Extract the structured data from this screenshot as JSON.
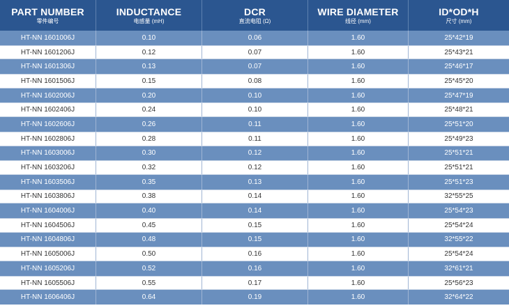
{
  "headers": [
    {
      "main": "PART NUMBER",
      "sub": "零件编号"
    },
    {
      "main": "INDUCTANCE",
      "sub": "电感量 (mH)"
    },
    {
      "main": "DCR",
      "sub": "直流电阻 (Ω)"
    },
    {
      "main": "WIRE DIAMETER",
      "sub": "线径 (mm)"
    },
    {
      "main": "ID*OD*H",
      "sub": "尺寸 (mm)"
    }
  ],
  "rows": [
    [
      "HT-NN 1601006J",
      "0.10",
      "0.06",
      "1.60",
      "25*42*19"
    ],
    [
      "HT-NN 1601206J",
      "0.12",
      "0.07",
      "1.60",
      "25*43*21"
    ],
    [
      "HT-NN 1601306J",
      "0.13",
      "0.07",
      "1.60",
      "25*46*17"
    ],
    [
      "HT-NN 1601506J",
      "0.15",
      "0.08",
      "1.60",
      "25*45*20"
    ],
    [
      "HT-NN 1602006J",
      "0.20",
      "0.10",
      "1.60",
      "25*47*19"
    ],
    [
      "HT-NN 1602406J",
      "0.24",
      "0.10",
      "1.60",
      "25*48*21"
    ],
    [
      "HT-NN 1602606J",
      "0.26",
      "0.11",
      "1.60",
      "25*51*20"
    ],
    [
      "HT-NN 1602806J",
      "0.28",
      "0.11",
      "1.60",
      "25*49*23"
    ],
    [
      "HT-NN 1603006J",
      "0.30",
      "0.12",
      "1.60",
      "25*51*21"
    ],
    [
      "HT-NN 1603206J",
      "0.32",
      "0.12",
      "1.60",
      "25*51*21"
    ],
    [
      "HT-NN 1603506J",
      "0.35",
      "0.13",
      "1.60",
      "25*51*23"
    ],
    [
      "HT-NN 1603806J",
      "0.38",
      "0.14",
      "1.60",
      "32*55*25"
    ],
    [
      "HT-NN 1604006J",
      "0.40",
      "0.14",
      "1.60",
      "25*54*23"
    ],
    [
      "HT-NN 1604506J",
      "0.45",
      "0.15",
      "1.60",
      "25*54*24"
    ],
    [
      "HT-NN 1604806J",
      "0.48",
      "0.15",
      "1.60",
      "32*55*22"
    ],
    [
      "HT-NN 1605006J",
      "0.50",
      "0.16",
      "1.60",
      "25*54*24"
    ],
    [
      "HT-NN 1605206J",
      "0.52",
      "0.16",
      "1.60",
      "32*61*21"
    ],
    [
      "HT-NN 1605506J",
      "0.55",
      "0.17",
      "1.60",
      "25*56*23"
    ],
    [
      "HT-NN 1606406J",
      "0.64",
      "0.19",
      "1.60",
      "32*64*22"
    ]
  ],
  "colors": {
    "header": "#2b5690",
    "row_blue": "#6a8fbe",
    "row_white": "#ffffff"
  }
}
